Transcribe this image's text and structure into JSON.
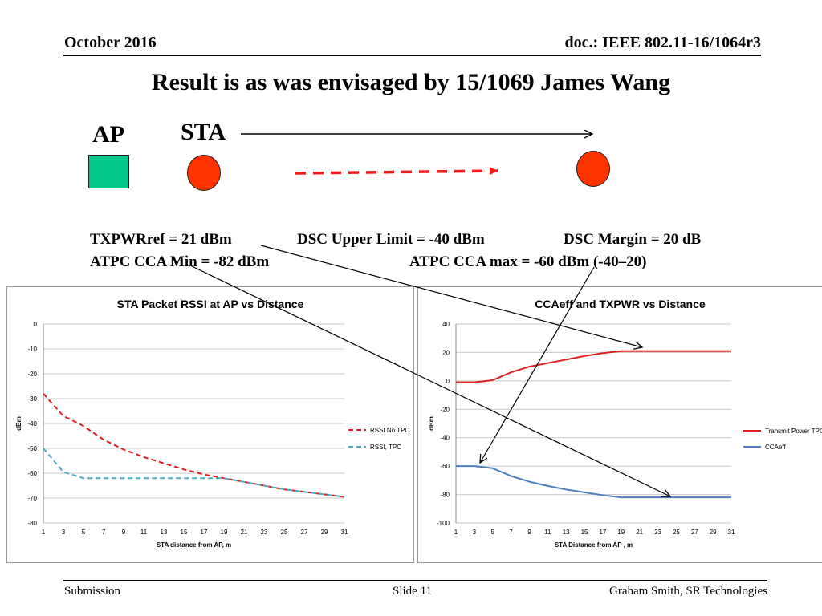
{
  "header": {
    "date": "October 2016",
    "doc": "doc.: IEEE 802.11-16/1064r3"
  },
  "slide_title": "Result is as was envisaged by 15/1069 James Wang",
  "diagram": {
    "ap_label": "AP",
    "sta_label": "STA"
  },
  "params": {
    "txpwr_ref": "TXPWRref = 21 dBm",
    "dsc_upper": "DSC Upper Limit = -40 dBm",
    "dsc_margin": "DSC Margin = 20 dB",
    "atpc_min": "ATPC CCA Min = -82 dBm",
    "atpc_max": "ATPC CCA max = -60 dBm (-40–20)"
  },
  "footer": {
    "left": "Submission",
    "center": "Slide 11",
    "right": "Graham Smith, SR Technologies"
  },
  "colors": {
    "ap_box": "#00c98a",
    "sta_dot": "#ff3300",
    "red_series": "#e02020",
    "blue_series": "#4f81bd",
    "cyan_series": "#4bacc6",
    "arrow_red": "#ee1c1c"
  },
  "chart_data": [
    {
      "type": "line",
      "title": "STA Packet RSSI at AP vs Distance",
      "xlabel": "STA distance from AP, m",
      "ylabel": "dBm",
      "ylim": [
        -80,
        0
      ],
      "yticks": [
        0,
        -10,
        -20,
        -30,
        -40,
        -50,
        -60,
        -70,
        -80
      ],
      "x": [
        1,
        3,
        5,
        7,
        9,
        11,
        13,
        15,
        17,
        19,
        21,
        23,
        25,
        27,
        29,
        31
      ],
      "grid": true,
      "legend": "right",
      "series": [
        {
          "name": "RSSI No TPC",
          "style": "dashed",
          "color": "#e02020",
          "values": [
            -28,
            -37,
            -41,
            -46.5,
            -50.5,
            -53.5,
            -56,
            -58.5,
            -60.5,
            -62,
            -63.5,
            -65,
            -66.5,
            -67.5,
            -68.5,
            -69.5
          ]
        },
        {
          "name": "RSSI, TPC",
          "style": "dashed",
          "color": "#4bacc6",
          "values": [
            -50,
            -59.5,
            -62,
            -62,
            -62,
            -62,
            -62,
            -62,
            -62,
            -62,
            -63.5,
            -65,
            -66.5,
            -67.5,
            -68.5,
            -69.5
          ]
        }
      ]
    },
    {
      "type": "line",
      "title": "CCAeff and TXPWR vs Distance",
      "xlabel": "STA Distance from AP , m",
      "ylabel": "dBm",
      "ylim": [
        -100,
        40
      ],
      "yticks": [
        40,
        20,
        0,
        -20,
        -40,
        -60,
        -80,
        -100
      ],
      "x": [
        1,
        3,
        5,
        7,
        9,
        11,
        13,
        15,
        17,
        19,
        21,
        23,
        25,
        27,
        29,
        31
      ],
      "grid": true,
      "legend": "right",
      "series": [
        {
          "name": "Transmit Power TPC",
          "style": "solid",
          "color": "#e02020",
          "values": [
            -1,
            -1,
            0.5,
            6,
            10,
            12.5,
            15,
            17.5,
            19.5,
            21,
            21,
            21,
            21,
            21,
            21,
            21
          ]
        },
        {
          "name": "CCAeff",
          "style": "solid",
          "color": "#4f81bd",
          "values": [
            -60,
            -60,
            -61.5,
            -67,
            -71,
            -74,
            -76.5,
            -78.5,
            -80.5,
            -82,
            -82,
            -82,
            -82,
            -82,
            -82,
            -82
          ]
        }
      ]
    }
  ]
}
